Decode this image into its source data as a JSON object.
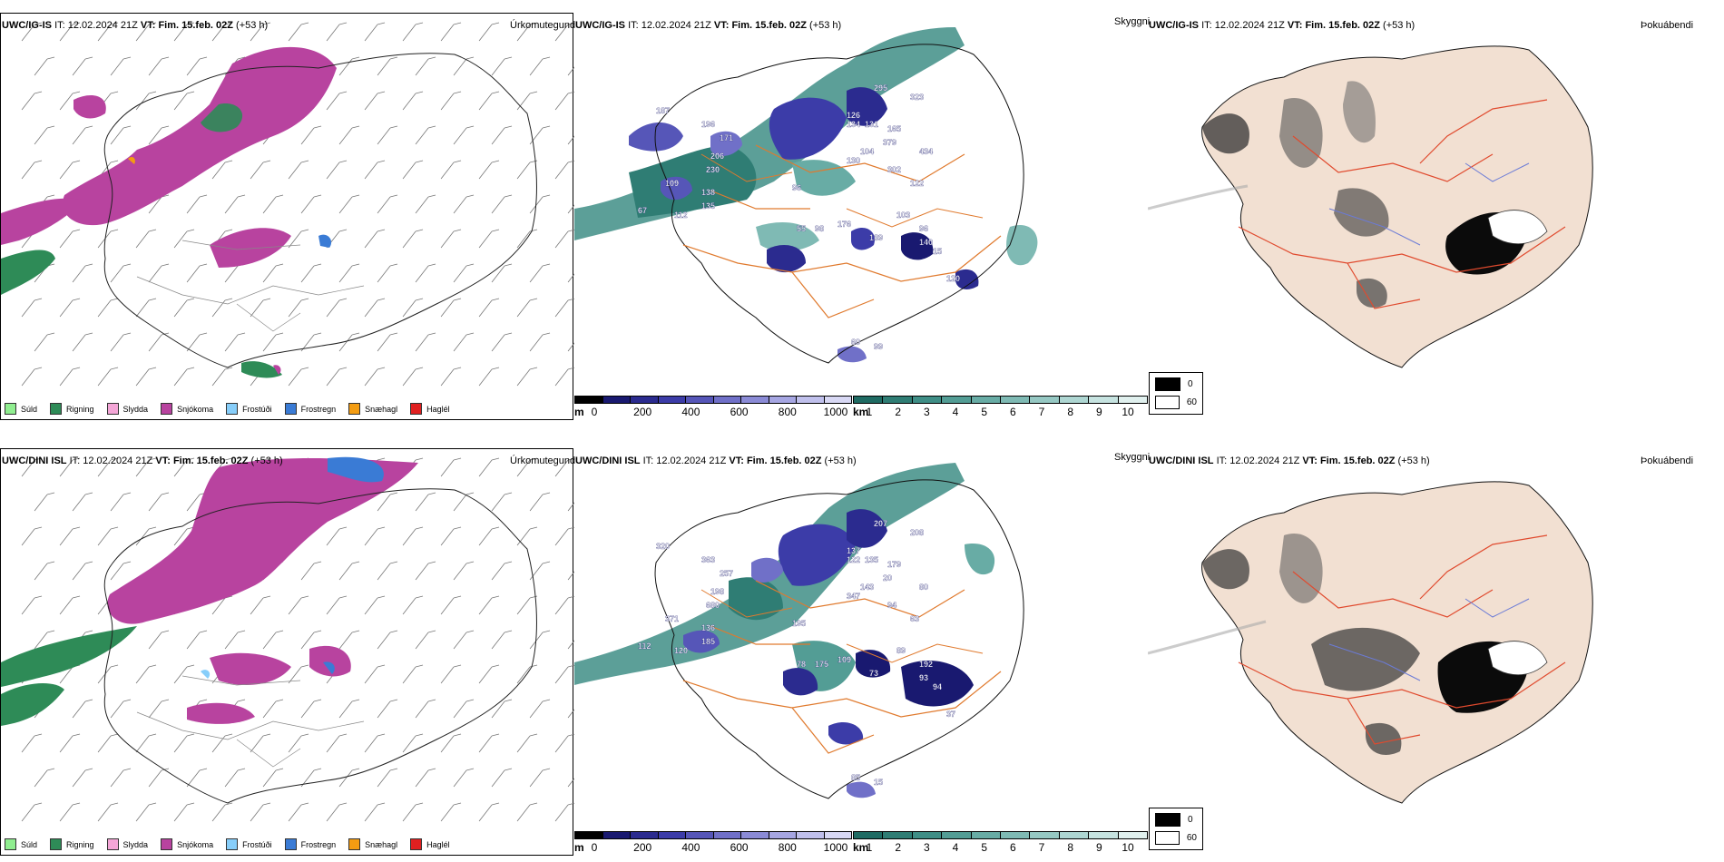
{
  "rows": [
    {
      "precip_panel": {
        "model": "UWC/IG-IS",
        "it_label": "IT:",
        "it_value": "12.02.2024 21Z",
        "vt_label": "VT:",
        "vt_value": "Fim. 15.feb. 02Z",
        "lead": "(+53 h)",
        "product": "Úrkomutegund"
      },
      "cloud_panel": {
        "model": "UWC/IG-IS",
        "it_label": "IT:",
        "it_value": "12.02.2024 21Z",
        "vt_label": "VT:",
        "vt_value": "Fim. 15.feb. 02Z",
        "lead": "(+53 h)",
        "product": "Skyggni",
        "labels": [
          "187",
          "196",
          "171",
          "206",
          "230",
          "109",
          "138",
          "135",
          "67",
          "112",
          "295",
          "323",
          "126",
          "134",
          "131",
          "165",
          "379",
          "434",
          "104",
          "130",
          "302",
          "122",
          "96",
          "55",
          "98",
          "176",
          "103",
          "139",
          "96",
          "140",
          "15",
          "120",
          "99",
          "60"
        ]
      },
      "fog_panel": {
        "model": "UWC/IG-IS",
        "it_label": "IT:",
        "it_value": "12.02.2024 21Z",
        "vt_label": "VT:",
        "vt_value": "Fim. 15.feb. 02Z",
        "lead": "(+53 h)",
        "product": "Þokuábendi"
      }
    },
    {
      "precip_panel": {
        "model": "UWC/DINI ISL",
        "it_label": "IT:",
        "it_value": "12.02.2024 21Z",
        "vt_label": "VT:",
        "vt_value": "Fim. 15.feb. 02Z",
        "lead": "(+53 h)",
        "product": "Úrkomutegund"
      },
      "cloud_panel": {
        "model": "UWC/DINI ISL",
        "it_label": "IT:",
        "it_value": "12.02.2024 21Z",
        "vt_label": "VT:",
        "vt_value": "Fim. 15.feb. 02Z",
        "lead": "(+53 h)",
        "product": "Skyggni",
        "labels": [
          "320",
          "363",
          "257",
          "198",
          "680",
          "371",
          "136",
          "185",
          "112",
          "120",
          "207",
          "208",
          "137",
          "122",
          "135",
          "179",
          "20",
          "80",
          "143",
          "347",
          "94",
          "63",
          "195",
          "78",
          "175",
          "109",
          "89",
          "73",
          "192",
          "93",
          "94",
          "37",
          "15",
          "85"
        ]
      },
      "fog_panel": {
        "model": "UWC/DINI ISL",
        "it_label": "IT:",
        "it_value": "12.02.2024 21Z",
        "vt_label": "VT:",
        "vt_value": "Fim. 15.feb. 02Z",
        "lead": "(+53 h)",
        "product": "Þokuábendi"
      }
    }
  ],
  "precip_legend": [
    {
      "label": "Súld",
      "color": "#90ee90"
    },
    {
      "label": "Rigning",
      "color": "#2e8b57"
    },
    {
      "label": "Slydda",
      "color": "#f4a6d7"
    },
    {
      "label": "Snjókoma",
      "color": "#b8439f"
    },
    {
      "label": "Frostúði",
      "color": "#87cefa"
    },
    {
      "label": "Frostregn",
      "color": "#3a7bd5"
    },
    {
      "label": "Snæhagl",
      "color": "#f39c12"
    },
    {
      "label": "Haglél",
      "color": "#e02020"
    }
  ],
  "height_bar": {
    "unit": "m",
    "ticks": [
      "0",
      "200",
      "400",
      "600",
      "800",
      "1000"
    ],
    "colors": [
      "#000000",
      "#191970",
      "#2b2b8f",
      "#3c3ca8",
      "#5656b8",
      "#7070c8",
      "#8b8bd6",
      "#a6a6e2",
      "#c0c0ec",
      "#d8d8f4"
    ]
  },
  "visibility_bar": {
    "unit": "km",
    "ticks": [
      "1",
      "2",
      "3",
      "4",
      "5",
      "6",
      "7",
      "8",
      "9",
      "10"
    ],
    "colors": [
      "#1f6b63",
      "#2f7d74",
      "#3f8e86",
      "#539d95",
      "#68aca5",
      "#7fbab4",
      "#96c8c3",
      "#aed6d2",
      "#c6e3e0",
      "#e0f0ee"
    ]
  },
  "fog_legend": [
    {
      "label": "0",
      "color": "#000000"
    },
    {
      "label": "60",
      "color": "#ffffff"
    }
  ]
}
